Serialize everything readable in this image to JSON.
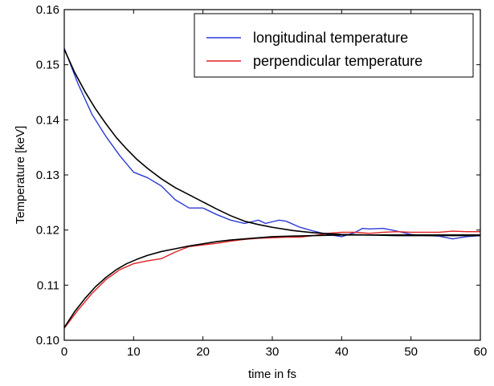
{
  "chart_data": {
    "type": "line",
    "title": "",
    "xlabel": "time in fs",
    "ylabel": "Temperature [keV]",
    "xlim": [
      0,
      60
    ],
    "ylim": [
      0.1,
      0.16
    ],
    "xticks": [
      0,
      10,
      20,
      30,
      40,
      50,
      60
    ],
    "xtick_labels": [
      "0",
      "10",
      "20",
      "30",
      "40",
      "50",
      "60"
    ],
    "yticks": [
      0.1,
      0.11,
      0.12,
      0.13,
      0.14,
      0.15,
      0.16
    ],
    "ytick_labels": [
      "0.10",
      "0.11",
      "0.12",
      "0.13",
      "0.14",
      "0.15",
      "0.16"
    ],
    "grid": false,
    "legend_position": "top-right",
    "series": [
      {
        "name": "longitudinal temperature",
        "color": "#2b3bd6",
        "x": [
          0,
          2,
          4,
          6,
          8,
          10,
          12,
          14,
          16,
          18,
          20,
          22,
          24,
          26,
          27,
          28,
          29,
          30,
          31,
          32,
          34,
          36,
          38,
          40,
          42,
          43,
          44,
          46,
          48,
          50,
          52,
          54,
          56,
          58,
          60
        ],
        "y": [
          0.153,
          0.1465,
          0.141,
          0.137,
          0.1335,
          0.1305,
          0.1295,
          0.128,
          0.1255,
          0.124,
          0.124,
          0.1228,
          0.1218,
          0.1212,
          0.1215,
          0.1218,
          0.1212,
          0.1215,
          0.1218,
          0.1216,
          0.1205,
          0.1198,
          0.1192,
          0.1188,
          0.1196,
          0.1203,
          0.1202,
          0.1203,
          0.1198,
          0.1192,
          0.119,
          0.1189,
          0.1184,
          0.1188,
          0.119
        ]
      },
      {
        "name": "perpendicular temperature",
        "color": "#e02020",
        "x": [
          0,
          2,
          4,
          6,
          8,
          10,
          12,
          14,
          16,
          18,
          20,
          22,
          24,
          26,
          28,
          30,
          32,
          34,
          36,
          38,
          40,
          42,
          44,
          46,
          48,
          50,
          52,
          54,
          56,
          58,
          60
        ],
        "y": [
          0.1022,
          0.1055,
          0.1085,
          0.111,
          0.1128,
          0.1139,
          0.1144,
          0.1148,
          0.116,
          0.117,
          0.1173,
          0.1176,
          0.118,
          0.1183,
          0.1185,
          0.1186,
          0.1187,
          0.1187,
          0.119,
          0.1194,
          0.1196,
          0.1196,
          0.1194,
          0.1196,
          0.1197,
          0.1196,
          0.1196,
          0.1196,
          0.1198,
          0.1197,
          0.1197
        ]
      },
      {
        "name": "",
        "color": "#000000",
        "x": [
          0,
          1.5,
          3,
          4.5,
          6,
          7.5,
          9,
          10.5,
          12,
          14,
          16,
          18,
          20,
          22,
          24,
          26,
          28,
          30,
          33,
          36,
          40,
          44,
          48,
          52,
          56,
          60
        ],
        "y": [
          0.1528,
          0.1486,
          0.1451,
          0.142,
          0.1393,
          0.1368,
          0.1347,
          0.1328,
          0.1312,
          0.1293,
          0.1277,
          0.1264,
          0.1251,
          0.1238,
          0.1226,
          0.1216,
          0.121,
          0.1205,
          0.1199,
          0.1195,
          0.1192,
          0.1191,
          0.119,
          0.119,
          0.119,
          0.119
        ]
      },
      {
        "name": "",
        "color": "#000000",
        "x": [
          0,
          1.5,
          3,
          4.5,
          6,
          7.5,
          9,
          10.5,
          12,
          14,
          16,
          18,
          20,
          22,
          24,
          26,
          28,
          30,
          33,
          36,
          40,
          44,
          48,
          52,
          56,
          60
        ],
        "y": [
          0.1023,
          0.1052,
          0.1076,
          0.1097,
          0.1114,
          0.1128,
          0.1139,
          0.1147,
          0.1154,
          0.1161,
          0.1166,
          0.1171,
          0.1175,
          0.1179,
          0.1182,
          0.1184,
          0.1186,
          0.1188,
          0.1189,
          0.119,
          0.1191,
          0.1191,
          0.1191,
          0.1191,
          0.1191,
          0.1191
        ]
      }
    ]
  }
}
